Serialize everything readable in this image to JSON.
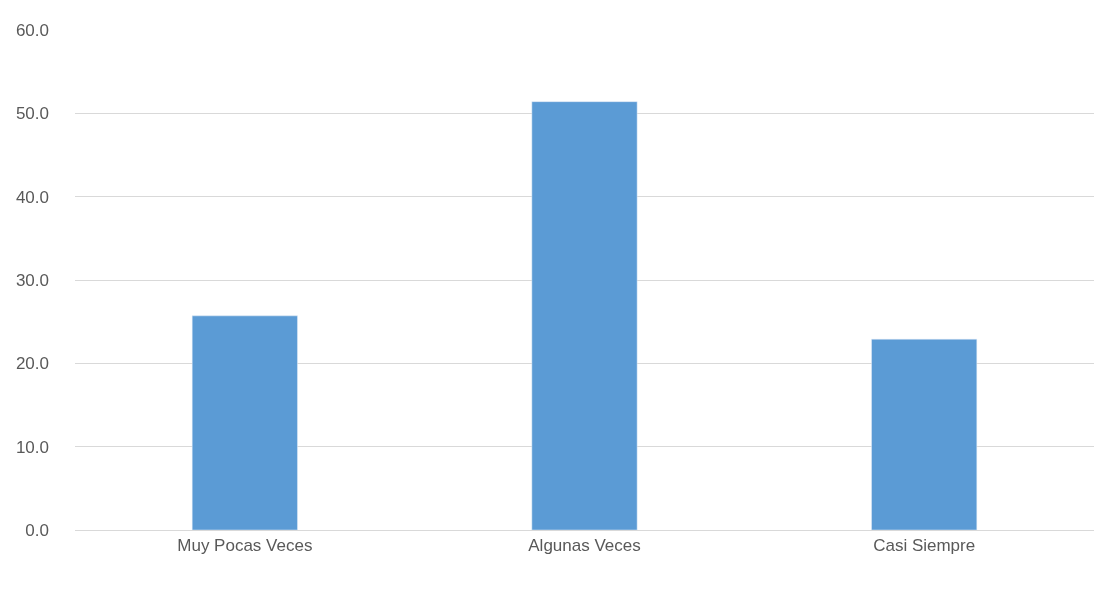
{
  "chart_data": {
    "type": "bar",
    "categories": [
      "Muy Pocas Veces",
      "Algunas Veces",
      "Casi Siempre"
    ],
    "values": [
      25.7,
      51.4,
      22.9
    ],
    "color": "#5b9bd5",
    "ylim": [
      0,
      60
    ],
    "yticks": [
      {
        "value": 0,
        "label": "0.0"
      },
      {
        "value": 10,
        "label": "10.0"
      },
      {
        "value": 20,
        "label": "20.0"
      },
      {
        "value": 30,
        "label": "30.0"
      },
      {
        "value": 40,
        "label": "40.0"
      },
      {
        "value": 50,
        "label": "50.0"
      },
      {
        "value": 60,
        "label": "60.0"
      }
    ],
    "grid": "y"
  }
}
